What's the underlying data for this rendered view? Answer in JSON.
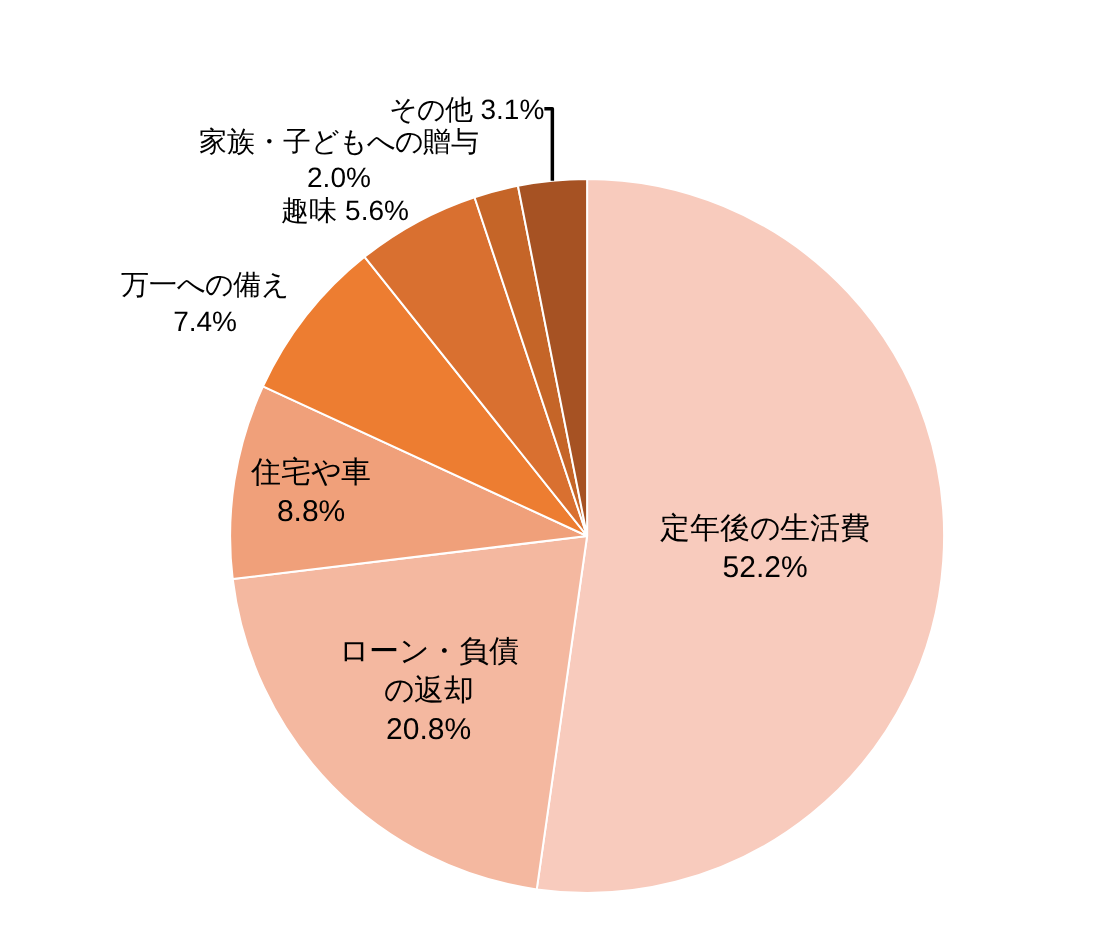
{
  "chart_data": {
    "type": "pie",
    "categories": [
      "定年後の生活費",
      "ローン・負債の返却",
      "住宅や車",
      "万一への備え",
      "趣味",
      "家族・子どもへの贈与",
      "その他"
    ],
    "values": [
      52.2,
      20.8,
      8.8,
      7.4,
      5.6,
      2.0,
      3.1
    ],
    "value_labels": [
      "52.2%",
      "20.8%",
      "8.8%",
      "7.4%",
      "5.6%",
      "2.0%",
      "3.1%"
    ],
    "colors": [
      "#f8cbbd",
      "#f4b8a0",
      "#f0a07a",
      "#ed7d31",
      "#d97030",
      "#c56528",
      "#a65223"
    ],
    "legend": false
  }
}
